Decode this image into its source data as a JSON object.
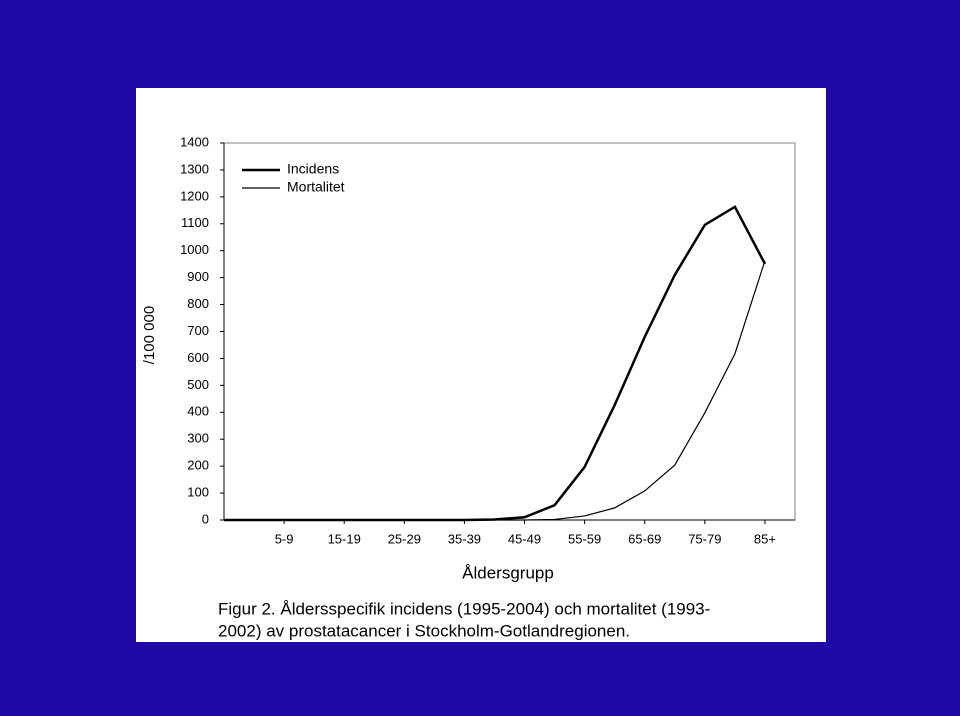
{
  "chart_data": {
    "type": "line",
    "categories": [
      null,
      null,
      "5-9",
      null,
      "15-19",
      null,
      "25-29",
      null,
      "35-39",
      null,
      "45-49",
      null,
      "55-59",
      null,
      "65-69",
      null,
      "75-79",
      null,
      "85+"
    ],
    "series": [
      {
        "name": "Incidens",
        "color": "#000000",
        "width": 2.5,
        "values": [
          0,
          0,
          0,
          0,
          0,
          0,
          0,
          0,
          0,
          2,
          10,
          55,
          197,
          427,
          680,
          910,
          1096,
          1163,
          951
        ]
      },
      {
        "name": "Mortalitet",
        "color": "#000000",
        "width": 1.2,
        "values": [
          0,
          0,
          0,
          0,
          0,
          0,
          0,
          0,
          0,
          0,
          0,
          2,
          15,
          45,
          108,
          204,
          398,
          617,
          963
        ]
      }
    ],
    "ylim": [
      0,
      1400
    ],
    "yticks": [
      0,
      100,
      200,
      300,
      400,
      500,
      600,
      700,
      800,
      900,
      1000,
      1100,
      1200,
      1300,
      1400
    ],
    "y_label": "/100 000",
    "x_label": "Åldersgrupp",
    "caption": [
      "Figur 2. Åldersspecifik incidens (1995-2004) och mortalitet (1993-",
      "2002) av prostatacancer i Stockholm-Gotlandregionen."
    ],
    "legend": "top-left"
  }
}
